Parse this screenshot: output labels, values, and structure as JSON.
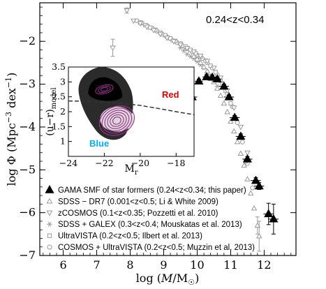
{
  "chart_data": {
    "type": "scatter",
    "annotation": "0.24<z<0.34",
    "xlabel": "log (M/M☉)",
    "ylabel": "log Φ (Mpc⁻³ dex⁻¹)",
    "xlim": [
      5.3,
      12.95
    ],
    "ylim": [
      -7.0,
      -1.1
    ],
    "xticks": [
      "6",
      "7",
      "8",
      "9",
      "10",
      "11",
      "12"
    ],
    "yticks": [
      "−2",
      "−3",
      "−4",
      "−5",
      "−6",
      "−7"
    ],
    "series": [
      {
        "name": "GAMA SMF of star formers (0.24<z<0.34; this paper)",
        "marker": "filled-triangle",
        "color": "#000000",
        "points": [
          {
            "x": 9.72,
            "y": -3.45,
            "xerr": 0.12,
            "yerr": 0.05
          },
          {
            "x": 9.85,
            "y": -3.3,
            "xerr": 0.15,
            "yerr": 0.05
          },
          {
            "x": 10.05,
            "y": -2.93,
            "xerr": 0.12,
            "yerr": 0.05
          },
          {
            "x": 10.28,
            "y": -2.83,
            "xerr": 0.12,
            "yerr": 0.05
          },
          {
            "x": 10.45,
            "y": -2.84,
            "xerr": 0.12,
            "yerr": 0.05
          },
          {
            "x": 10.6,
            "y": -2.88,
            "xerr": 0.12,
            "yerr": 0.05
          },
          {
            "x": 10.8,
            "y": -3.05,
            "xerr": 0.15,
            "yerr": 0.05
          },
          {
            "x": 10.95,
            "y": -3.3,
            "xerr": 0.15,
            "yerr": 0.05
          },
          {
            "x": 11.12,
            "y": -3.78,
            "xerr": 0.15,
            "yerr": 0.05
          },
          {
            "x": 11.3,
            "y": -4.22,
            "xerr": 0.15,
            "yerr": 0.06
          },
          {
            "x": 11.5,
            "y": -4.75,
            "xerr": 0.15,
            "yerr": 0.06
          },
          {
            "x": 11.75,
            "y": -5.25,
            "xerr": 0.15,
            "yerr": 0.07
          },
          {
            "x": 11.85,
            "y": -5.38,
            "xerr": 0.15,
            "yerr": 0.08
          },
          {
            "x": 12.13,
            "y": -6.03,
            "xerr": 0.15,
            "yerr": 0.25
          },
          {
            "x": 12.28,
            "y": -6.15,
            "xerr": 0.15,
            "yerr": 0.35
          }
        ]
      },
      {
        "name": "SDSS − DR7 (0.001<z<0.5; Li & White 2009)",
        "marker": "open-triangle",
        "color": "#999999",
        "points": [
          {
            "x": 9.9,
            "y": -2.35
          },
          {
            "x": 10.0,
            "y": -2.42
          },
          {
            "x": 10.1,
            "y": -2.5
          },
          {
            "x": 10.2,
            "y": -2.6
          },
          {
            "x": 10.3,
            "y": -2.7
          },
          {
            "x": 10.4,
            "y": -2.82
          },
          {
            "x": 10.5,
            "y": -2.95
          },
          {
            "x": 10.6,
            "y": -3.1
          },
          {
            "x": 10.7,
            "y": -3.27
          },
          {
            "x": 10.8,
            "y": -3.45
          },
          {
            "x": 10.9,
            "y": -3.65
          },
          {
            "x": 11.0,
            "y": -3.87
          },
          {
            "x": 11.1,
            "y": -4.1
          },
          {
            "x": 11.2,
            "y": -4.35
          },
          {
            "x": 11.3,
            "y": -4.62
          },
          {
            "x": 11.4,
            "y": -4.9
          },
          {
            "x": 11.5,
            "y": -5.22
          },
          {
            "x": 11.6,
            "y": -5.55
          },
          {
            "x": 11.7,
            "y": -5.9
          },
          {
            "x": 11.8,
            "y": -6.3,
            "yerr": 0.2
          },
          {
            "x": 11.85,
            "y": -6.55,
            "yerr": 0.35
          }
        ]
      },
      {
        "name": "zCOSMOS (0.1<z<0.35; Pozzetti et al. 2010)",
        "marker": "open-triangle-down",
        "color": "#999999",
        "points": [
          {
            "x": 7.48,
            "y": -2.15,
            "yerr": 0.2
          },
          {
            "x": 7.9,
            "y": -1.28,
            "yerr": 0.06
          },
          {
            "x": 8.1,
            "y": -1.52
          },
          {
            "x": 8.3,
            "y": -1.58
          },
          {
            "x": 8.5,
            "y": -1.66
          },
          {
            "x": 8.7,
            "y": -1.74
          },
          {
            "x": 8.9,
            "y": -1.83
          },
          {
            "x": 9.1,
            "y": -1.92
          },
          {
            "x": 9.3,
            "y": -2.0
          },
          {
            "x": 9.5,
            "y": -2.08
          },
          {
            "x": 9.7,
            "y": -2.16
          },
          {
            "x": 9.9,
            "y": -2.24
          },
          {
            "x": 10.1,
            "y": -2.34
          },
          {
            "x": 10.3,
            "y": -2.46
          },
          {
            "x": 10.5,
            "y": -2.62
          },
          {
            "x": 10.7,
            "y": -2.85
          },
          {
            "x": 10.9,
            "y": -3.15
          },
          {
            "x": 11.1,
            "y": -3.55
          },
          {
            "x": 11.3,
            "y": -4.0
          },
          {
            "x": 11.5,
            "y": -4.6
          }
        ]
      },
      {
        "name": "SDSS + GALEX (0.3<z<0.4; Mouskatas et al. 2013)",
        "marker": "asterisk",
        "color": "#999999",
        "points": [
          {
            "x": 9.5,
            "y": -2.15
          },
          {
            "x": 9.6,
            "y": -2.22
          },
          {
            "x": 9.7,
            "y": -2.3
          },
          {
            "x": 9.8,
            "y": -2.35
          },
          {
            "x": 9.9,
            "y": -2.4
          },
          {
            "x": 10.0,
            "y": -2.47
          },
          {
            "x": 10.1,
            "y": -2.55
          },
          {
            "x": 10.2,
            "y": -2.62
          },
          {
            "x": 10.3,
            "y": -2.72
          },
          {
            "x": 10.4,
            "y": -2.82
          },
          {
            "x": 10.5,
            "y": -2.93
          },
          {
            "x": 10.6,
            "y": -3.05
          }
        ]
      },
      {
        "name": "UltraVISTA (0.2<z<0.5; Ilbert et al. 2013)",
        "marker": "open-square",
        "color": "#999999",
        "points": [
          {
            "x": 8.3,
            "y": -1.56
          },
          {
            "x": 8.45,
            "y": -1.62
          },
          {
            "x": 8.6,
            "y": -1.68
          },
          {
            "x": 8.75,
            "y": -1.73
          },
          {
            "x": 8.9,
            "y": -1.8
          },
          {
            "x": 9.05,
            "y": -1.86
          },
          {
            "x": 9.2,
            "y": -1.93
          },
          {
            "x": 9.35,
            "y": -1.99
          },
          {
            "x": 9.5,
            "y": -2.05
          },
          {
            "x": 9.65,
            "y": -2.12
          },
          {
            "x": 9.8,
            "y": -2.2
          },
          {
            "x": 9.95,
            "y": -2.28
          },
          {
            "x": 10.1,
            "y": -2.36
          },
          {
            "x": 10.25,
            "y": -2.45
          },
          {
            "x": 10.4,
            "y": -2.57
          },
          {
            "x": 10.55,
            "y": -2.72
          },
          {
            "x": 10.7,
            "y": -2.92
          },
          {
            "x": 10.85,
            "y": -3.15
          },
          {
            "x": 11.0,
            "y": -3.45
          },
          {
            "x": 11.15,
            "y": -3.8
          },
          {
            "x": 11.3,
            "y": -4.25
          },
          {
            "x": 11.45,
            "y": -4.8
          }
        ]
      },
      {
        "name": "COSMOS + UltraVISTA (0.2<z<0.5; Muzzin et al. 2013)",
        "marker": "open-circle",
        "color": "#999999",
        "points": [
          {
            "x": 8.2,
            "y": -1.52
          },
          {
            "x": 8.35,
            "y": -1.57
          },
          {
            "x": 8.5,
            "y": -1.63
          },
          {
            "x": 8.65,
            "y": -1.69
          },
          {
            "x": 8.8,
            "y": -1.76
          },
          {
            "x": 8.95,
            "y": -1.83
          },
          {
            "x": 9.1,
            "y": -1.9
          },
          {
            "x": 9.25,
            "y": -1.97
          },
          {
            "x": 9.4,
            "y": -2.03
          },
          {
            "x": 9.55,
            "y": -2.1
          },
          {
            "x": 9.7,
            "y": -2.17
          },
          {
            "x": 9.85,
            "y": -2.24
          },
          {
            "x": 10.0,
            "y": -2.32
          },
          {
            "x": 10.15,
            "y": -2.4
          },
          {
            "x": 10.3,
            "y": -2.5
          },
          {
            "x": 10.45,
            "y": -2.62
          },
          {
            "x": 10.6,
            "y": -2.78
          },
          {
            "x": 10.75,
            "y": -2.98
          },
          {
            "x": 10.9,
            "y": -3.22
          },
          {
            "x": 11.05,
            "y": -3.52
          },
          {
            "x": 11.2,
            "y": -3.9
          },
          {
            "x": 11.35,
            "y": -4.35
          },
          {
            "x": 11.5,
            "y": -4.85
          },
          {
            "x": 11.65,
            "y": -5.42
          }
        ]
      }
    ],
    "legend_placement": "lower-left",
    "inset": {
      "type": "heatmap",
      "xlabel": "Mr",
      "ylabel": "(u−r)model",
      "xlim": [
        -24,
        -17
      ],
      "ylim": [
        0.5,
        3.5
      ],
      "xticks": [
        "−24",
        "−22",
        "−20",
        "−18"
      ],
      "yticks": [
        "1",
        "1.5",
        "2",
        "2.5",
        "3",
        "3.5"
      ],
      "red_label": "Red",
      "blue_label": "Blue",
      "red_color": "#e00000",
      "blue_color": "#00b0f0",
      "contour_color": "#a0308f",
      "divider_x": [
        -24,
        -23,
        -22,
        -21,
        -20,
        -19,
        -18,
        -17
      ],
      "divider_y": [
        2.36,
        2.35,
        2.32,
        2.28,
        2.21,
        2.11,
        2.0,
        1.9
      ]
    }
  }
}
